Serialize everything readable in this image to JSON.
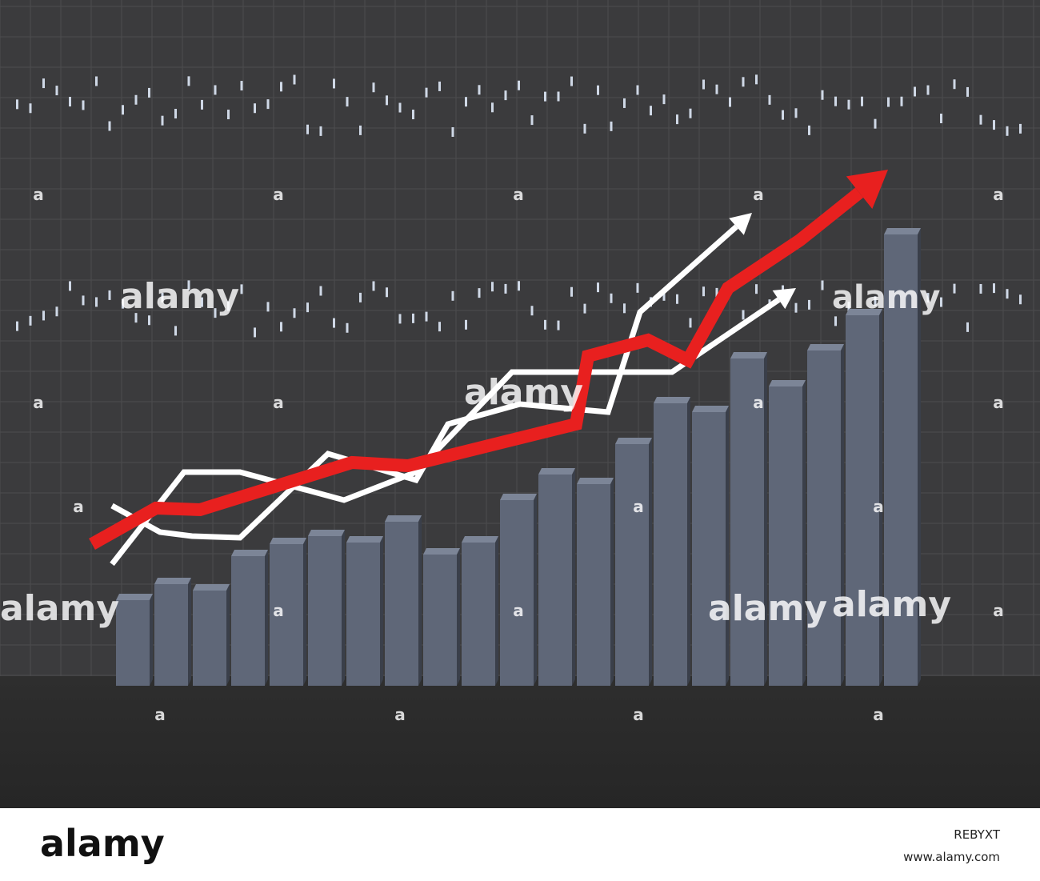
{
  "chart_data": [
    {
      "type": "bar",
      "categories": [
        null,
        null,
        null,
        null,
        null,
        null,
        null,
        null,
        null,
        null,
        null,
        null,
        null,
        null,
        null,
        null,
        null,
        null,
        null,
        null,
        null
      ],
      "values": [
        107,
        127,
        119,
        162,
        177,
        187,
        179,
        205,
        164,
        179,
        232,
        264,
        252,
        302,
        353,
        342,
        409,
        374,
        419,
        463,
        564
      ],
      "color": "#5f6778",
      "ylim": [
        0,
        857
      ]
    },
    {
      "type": "line",
      "xlim": [
        0,
        1300
      ],
      "ylim": [
        0,
        857
      ],
      "series": [
        {
          "color": "#ffffff",
          "x": [
            140,
            200,
            240,
            300,
            410,
            520,
            560,
            650,
            760,
            800,
            940
          ],
          "values": [
            225,
            192,
            187,
            185,
            290,
            257,
            327,
            352,
            342,
            467,
            591
          ]
        },
        {
          "color": "#ffffff",
          "x": [
            140,
            230,
            300,
            430,
            520,
            640,
            840,
            995
          ],
          "values": [
            152,
            267,
            267,
            232,
            267,
            392,
            392,
            497
          ]
        },
        {
          "color": "#e8201f",
          "x": [
            115,
            195,
            250,
            440,
            510,
            720,
            735,
            810,
            860,
            910,
            1000,
            1110
          ],
          "values": [
            177,
            222,
            220,
            279,
            275,
            327,
            412,
            432,
            407,
            497,
            557,
            645
          ]
        }
      ]
    }
  ],
  "watermarks": [
    "alamy",
    "alamy",
    "alamy",
    "alamy",
    "alamy",
    "alamy"
  ],
  "marks": "a",
  "footer": {
    "logo": "alamy",
    "id": "REBYXT",
    "url": "www.alamy.com"
  }
}
